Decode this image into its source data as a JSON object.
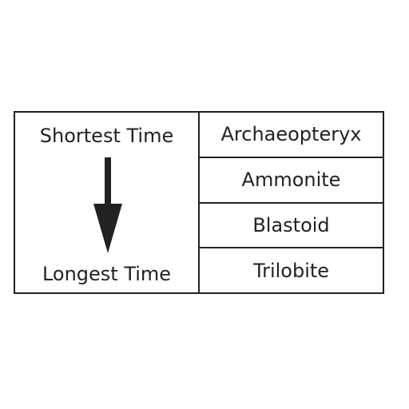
{
  "time_axis": {
    "top_label": "Shortest Time",
    "bottom_label": "Longest Time",
    "arrow_icon": "down-arrow-icon"
  },
  "fossils": [
    "Archaeopteryx",
    "Ammonite",
    "Blastoid",
    "Trilobite"
  ],
  "colors": {
    "line": "#222222",
    "background": "#ffffff"
  }
}
